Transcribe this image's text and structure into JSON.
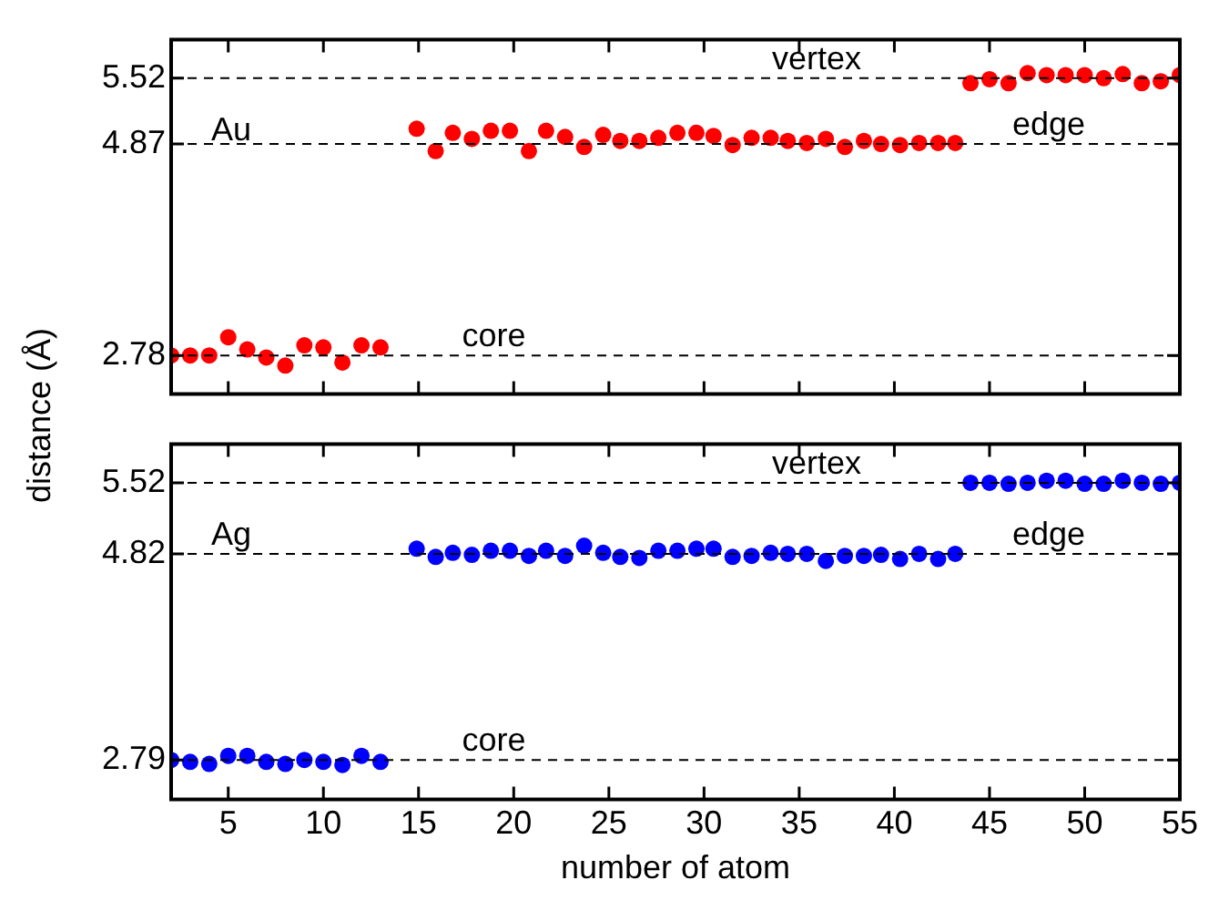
{
  "chart_data": [
    {
      "type": "scatter",
      "ylabel": "distance (Å)",
      "annotations": [
        "Au"
      ],
      "tick_labels": "y",
      "marker": "circle",
      "xlim": [
        2,
        55
      ],
      "xticks": [
        5,
        10,
        15,
        20,
        25,
        30,
        35,
        40,
        45,
        50,
        55
      ],
      "ylim": [
        2.4,
        5.9
      ],
      "yticks": [
        2.78,
        4.87,
        5.52
      ],
      "ref_lines": [
        {
          "axis": "y",
          "value": 5.52,
          "label": "vertex",
          "line_style": "dashed"
        },
        {
          "axis": "y",
          "value": 4.87,
          "label": "edge",
          "line_style": "dashed"
        },
        {
          "axis": "y",
          "value": 2.78,
          "label": "core",
          "line_style": "dashed"
        }
      ],
      "series": [
        {
          "color": "#ff0000",
          "x": [
            2,
            3,
            4,
            5,
            6,
            7,
            8,
            9,
            10,
            11,
            12,
            13,
            14.9,
            15.9,
            16.8,
            17.8,
            18.8,
            19.8,
            20.8,
            21.7,
            22.7,
            23.7,
            24.7,
            25.6,
            26.6,
            27.6,
            28.6,
            29.6,
            30.5,
            31.5,
            32.5,
            33.5,
            34.4,
            35.4,
            36.4,
            37.4,
            38.4,
            39.3,
            40.3,
            41.3,
            42.3,
            43.2,
            44,
            45,
            46,
            47,
            48,
            49,
            50,
            51,
            52,
            53,
            54,
            55
          ],
          "values": [
            2.78,
            2.78,
            2.78,
            2.96,
            2.84,
            2.76,
            2.68,
            2.88,
            2.86,
            2.71,
            2.88,
            2.86,
            5.02,
            4.8,
            4.98,
            4.92,
            5.0,
            5.0,
            4.8,
            5.0,
            4.94,
            4.84,
            4.96,
            4.9,
            4.9,
            4.93,
            4.98,
            4.98,
            4.95,
            4.86,
            4.93,
            4.93,
            4.9,
            4.88,
            4.92,
            4.84,
            4.9,
            4.87,
            4.86,
            4.88,
            4.88,
            4.88,
            5.47,
            5.51,
            5.47,
            5.57,
            5.55,
            5.55,
            5.55,
            5.52,
            5.56,
            5.47,
            5.49,
            5.55
          ]
        }
      ]
    },
    {
      "type": "scatter",
      "xlabel": "number of atom",
      "annotations": [
        "Ag"
      ],
      "marker": "circle",
      "xlim": [
        2,
        55
      ],
      "xticks": [
        5,
        10,
        15,
        20,
        25,
        30,
        35,
        40,
        45,
        50,
        55
      ],
      "ylim": [
        2.4,
        5.9
      ],
      "yticks": [
        2.79,
        4.82,
        5.52
      ],
      "ref_lines": [
        {
          "axis": "y",
          "value": 5.52,
          "label": "vertex",
          "line_style": "dashed"
        },
        {
          "axis": "y",
          "value": 4.82,
          "label": "edge",
          "line_style": "dashed"
        },
        {
          "axis": "y",
          "value": 2.79,
          "label": "core",
          "line_style": "dashed"
        }
      ],
      "series": [
        {
          "color": "#0000ff",
          "x": [
            2,
            3,
            4,
            5,
            6,
            7,
            8,
            9,
            10,
            11,
            12,
            13,
            14.9,
            15.9,
            16.8,
            17.8,
            18.8,
            19.8,
            20.8,
            21.7,
            22.7,
            23.7,
            24.7,
            25.6,
            26.6,
            27.6,
            28.6,
            29.6,
            30.5,
            31.5,
            32.5,
            33.5,
            34.4,
            35.4,
            36.4,
            37.4,
            38.4,
            39.3,
            40.3,
            41.3,
            42.3,
            43.2,
            44,
            45,
            46,
            47,
            48,
            49,
            50,
            51,
            52,
            53,
            54,
            55
          ],
          "values": [
            2.79,
            2.77,
            2.75,
            2.83,
            2.83,
            2.77,
            2.75,
            2.79,
            2.77,
            2.74,
            2.83,
            2.77,
            4.87,
            4.79,
            4.83,
            4.81,
            4.85,
            4.85,
            4.8,
            4.85,
            4.8,
            4.9,
            4.83,
            4.79,
            4.78,
            4.85,
            4.85,
            4.87,
            4.87,
            4.79,
            4.8,
            4.83,
            4.82,
            4.82,
            4.75,
            4.8,
            4.8,
            4.81,
            4.77,
            4.82,
            4.77,
            4.82,
            5.52,
            5.52,
            5.51,
            5.52,
            5.54,
            5.54,
            5.51,
            5.51,
            5.54,
            5.52,
            5.51,
            5.52
          ]
        }
      ]
    }
  ]
}
